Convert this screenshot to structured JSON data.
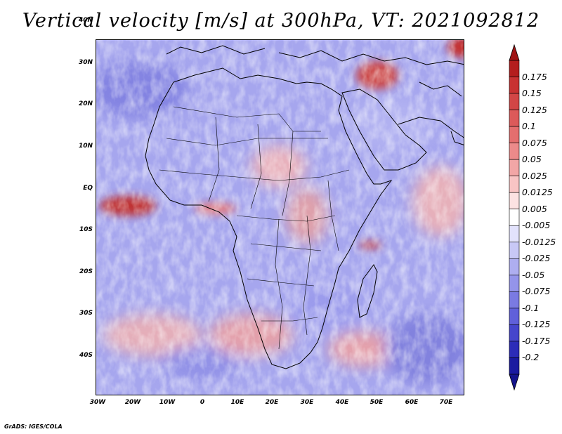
{
  "title": "Vertical velocity [m/s] at 300hPa, VT: 2021092812",
  "credit": "GrADS: IGES/COLA",
  "lat_ticks": [
    "40N",
    "30N",
    "20N",
    "10N",
    "EQ",
    "10S",
    "20S",
    "30S",
    "40S"
  ],
  "lon_ticks": [
    "30W",
    "20W",
    "10W",
    "0",
    "10E",
    "20E",
    "30E",
    "40E",
    "50E",
    "60E",
    "70E"
  ],
  "colorbar": {
    "labels": [
      "0.175",
      "0.15",
      "0.125",
      "0.1",
      "0.075",
      "0.05",
      "0.025",
      "0.0125",
      "0.005",
      "-0.005",
      "-0.0125",
      "-0.025",
      "-0.05",
      "-0.075",
      "-0.1",
      "-0.125",
      "-0.175",
      "-0.2"
    ],
    "colors": [
      "#b41e1e",
      "#c83232",
      "#d24646",
      "#dc5a5a",
      "#e46e6e",
      "#ec8a8a",
      "#f2a6a6",
      "#f8c4c4",
      "#fce2e2",
      "#ffffff",
      "#e2e2fc",
      "#c8c8f6",
      "#aeaef0",
      "#9494ea",
      "#7a7ae2",
      "#6060da",
      "#4646cc",
      "#2c2cb8",
      "#1a1aa0"
    ]
  },
  "icons": {
    "colorbar_top": "triangle-up-icon",
    "colorbar_bottom": "triangle-down-icon"
  }
}
